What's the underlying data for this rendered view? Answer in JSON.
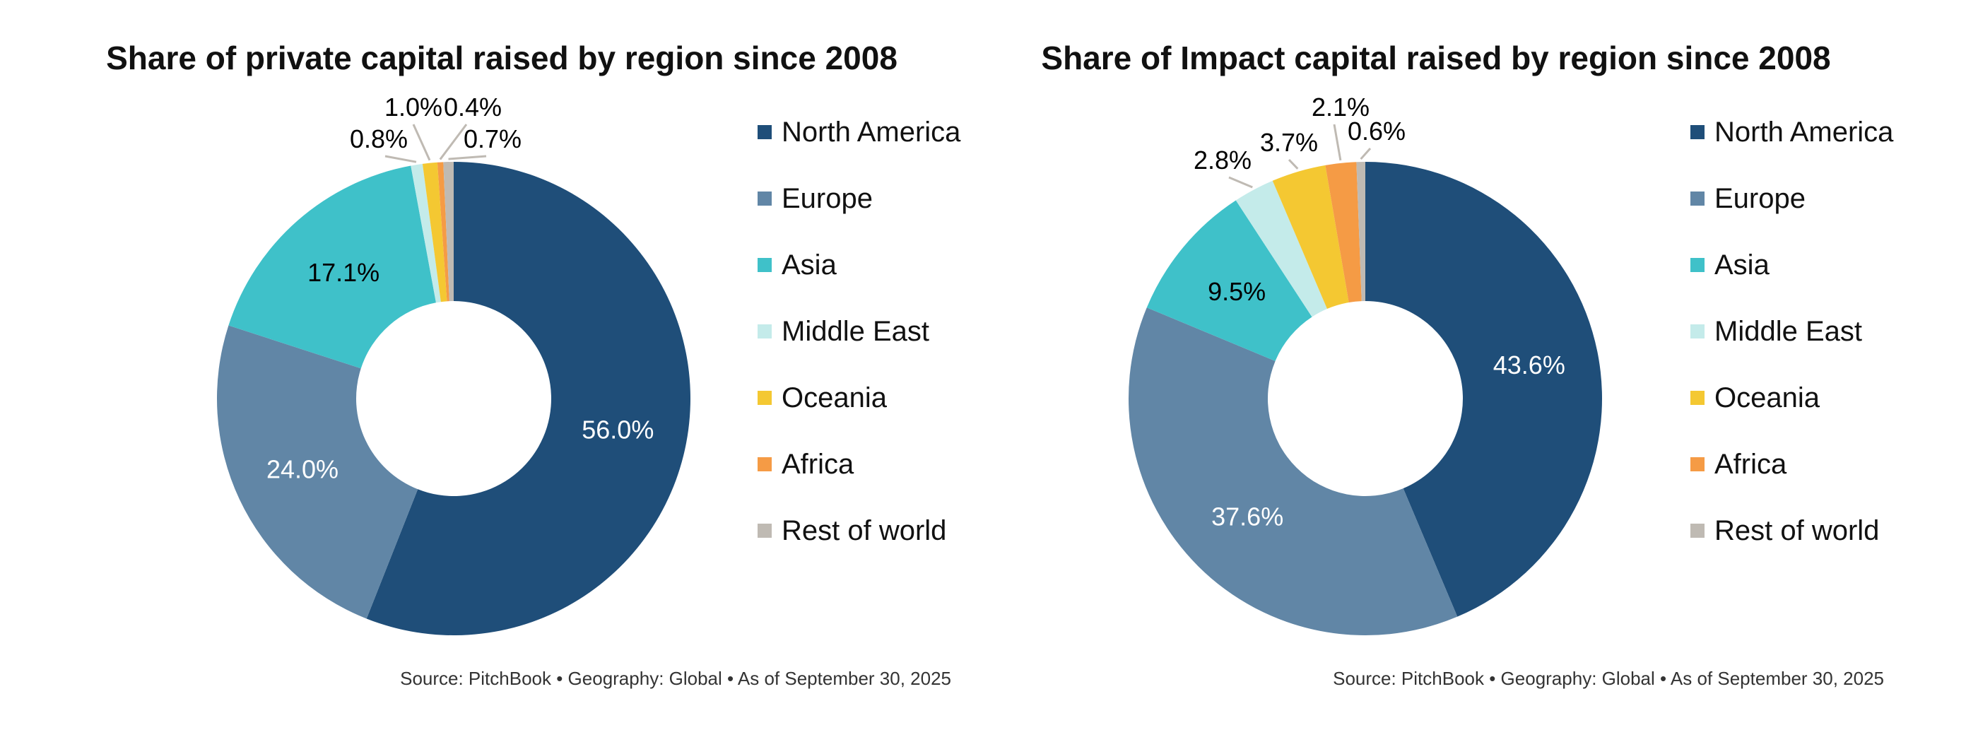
{
  "chart_data": [
    {
      "type": "pie",
      "donut": true,
      "title": "Share of private capital raised by region since 2008",
      "categories": [
        "North America",
        "Europe",
        "Asia",
        "Middle East",
        "Oceania",
        "Africa",
        "Rest of world"
      ],
      "values": [
        56.0,
        24.0,
        17.1,
        0.8,
        1.0,
        0.4,
        0.7
      ],
      "labels": [
        "56.0%",
        "24.0%",
        "17.1%",
        "0.8%",
        "1.0%",
        "0.4%",
        "0.7%"
      ],
      "legend_position": "right",
      "source": "Source: PitchBook  •  Geography: Global  •  As of September 30, 2025"
    },
    {
      "type": "pie",
      "donut": true,
      "title": "Share of Impact capital raised by region since 2008",
      "categories": [
        "North America",
        "Europe",
        "Asia",
        "Middle East",
        "Oceania",
        "Africa",
        "Rest of world"
      ],
      "values": [
        43.6,
        37.6,
        9.5,
        2.8,
        3.7,
        2.1,
        0.6
      ],
      "labels": [
        "43.6%",
        "37.6%",
        "9.5%",
        "2.8%",
        "3.7%",
        "2.1%",
        "0.6%"
      ],
      "legend_position": "right",
      "source": "Source: PitchBook  •  Geography: Global  •  As of September 30, 2025"
    }
  ],
  "colors": [
    "#1f4e79",
    "#6186a6",
    "#3fc1c9",
    "#c4ebea",
    "#f4c832",
    "#f59b45",
    "#bfbab3"
  ],
  "label_text_colors": [
    "#ffffff",
    "#ffffff",
    "#000000",
    "#000000",
    "#000000",
    "#000000",
    "#000000"
  ]
}
